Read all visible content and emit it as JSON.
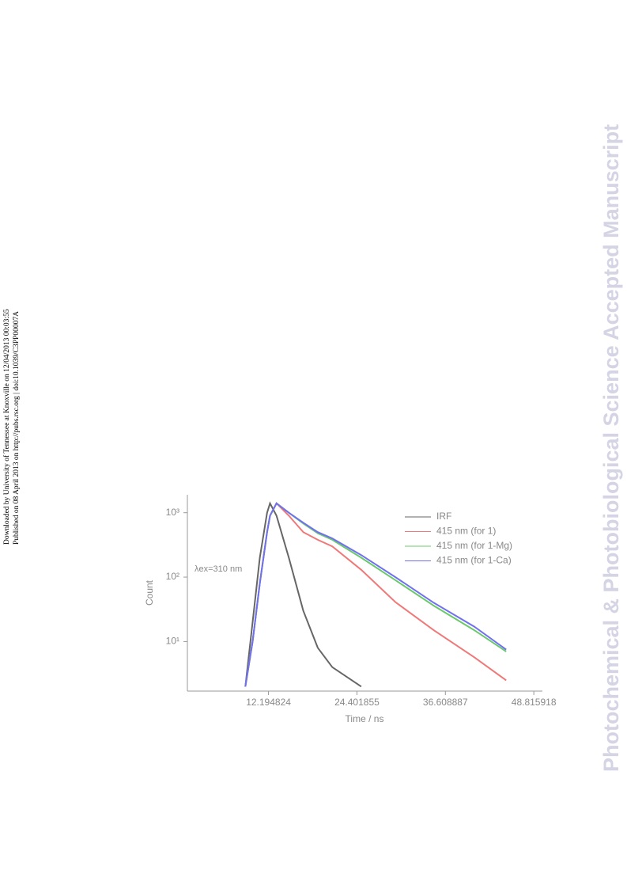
{
  "sidebar": {
    "downloaded": "Downloaded by University of Tennessee at Knoxville on 12/04/2013 00:03:55",
    "published": "Published on 08 April 2013 on http://pubs.rsc.org | doi:10.1039/C3PP00007A"
  },
  "watermark": "Photochemical & Photobiological Science Accepted Manuscript",
  "chart_data": {
    "type": "line",
    "x_label": "Time / ns",
    "y_label": "Count",
    "annotation": "λex=310 nm",
    "log_y": true,
    "legend": "top-right",
    "x": [
      9,
      10,
      11,
      12,
      12.4,
      13.3,
      15,
      17,
      19,
      21,
      25,
      29.7,
      35,
      40.6,
      45
    ],
    "series": [
      {
        "name": "IRF",
        "color": "#666666",
        "values": [
          2,
          20,
          200,
          1000,
          1400,
          900,
          200,
          30,
          8,
          4,
          2,
          null,
          null,
          null,
          null
        ]
      },
      {
        "name": "415 nm (for 1)",
        "color": "#f07878",
        "values": [
          2,
          10,
          80,
          500,
          900,
          1400,
          900,
          500,
          380,
          300,
          130,
          41,
          15,
          5.7,
          2.5
        ]
      },
      {
        "name": "415 nm (for 1-Mg)",
        "color": "#6cc86c",
        "values": [
          2,
          10,
          80,
          500,
          900,
          1400,
          1000,
          680,
          480,
          380,
          200,
          90,
          36,
          15,
          7
        ]
      },
      {
        "name": "415 nm (for 1-Ca)",
        "color": "#7070f0",
        "values": [
          2,
          10,
          80,
          500,
          900,
          1400,
          1000,
          700,
          500,
          400,
          220,
          100,
          40,
          17,
          7.5
        ]
      }
    ],
    "xlim": [
      1,
      50
    ],
    "xticks": [
      12.194824,
      24.401855,
      36.608887,
      48.815918
    ],
    "ylim": [
      1.7,
      1900
    ],
    "yticks": [
      {
        "value": 10,
        "label": "10¹"
      },
      {
        "value": 100,
        "label": "10²"
      },
      {
        "value": 1000,
        "label": "10³"
      }
    ]
  }
}
